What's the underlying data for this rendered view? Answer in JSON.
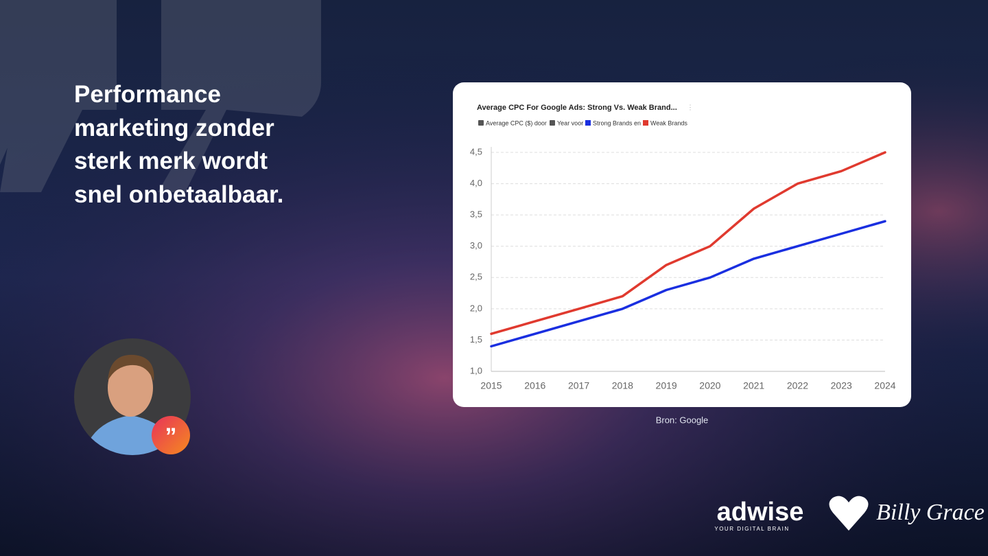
{
  "quote": "Performance marketing zonder sterk merk wordt snel onbetaalbaar.",
  "source": "Bron: Google",
  "logos": {
    "adwise": "adwise",
    "adwise_tagline": "YOUR DIGITAL BRAIN",
    "partner": "Billy Grace"
  },
  "chart_data": {
    "type": "line",
    "title": "Average CPC For Google Ads: Strong Vs. Weak Brand...",
    "y_label": "Average CPC ($) door",
    "x_label": "Year voor",
    "categories": [
      "2015",
      "2016",
      "2017",
      "2018",
      "2019",
      "2020",
      "2021",
      "2022",
      "2023",
      "2024"
    ],
    "series": [
      {
        "name": "Strong Brands en",
        "color": "#1a2fe0",
        "values": [
          1.4,
          1.6,
          1.8,
          2.0,
          2.3,
          2.5,
          2.8,
          3.0,
          3.2,
          3.4
        ]
      },
      {
        "name": "Weak Brands",
        "color": "#e03a2f",
        "values": [
          1.6,
          1.8,
          2.0,
          2.2,
          2.7,
          3.0,
          3.6,
          4.0,
          4.2,
          4.5
        ]
      }
    ],
    "ylim": [
      1.0,
      4.5
    ],
    "yticks": [
      {
        "value": 1.0,
        "label": "1,0"
      },
      {
        "value": 1.5,
        "label": "1,5"
      },
      {
        "value": 2.0,
        "label": "2,0"
      },
      {
        "value": 2.5,
        "label": "2,5"
      },
      {
        "value": 3.0,
        "label": "3,0"
      },
      {
        "value": 3.5,
        "label": "3,5"
      },
      {
        "value": 4.0,
        "label": "4,0"
      },
      {
        "value": 4.5,
        "label": "4,5"
      }
    ],
    "grid": true
  }
}
